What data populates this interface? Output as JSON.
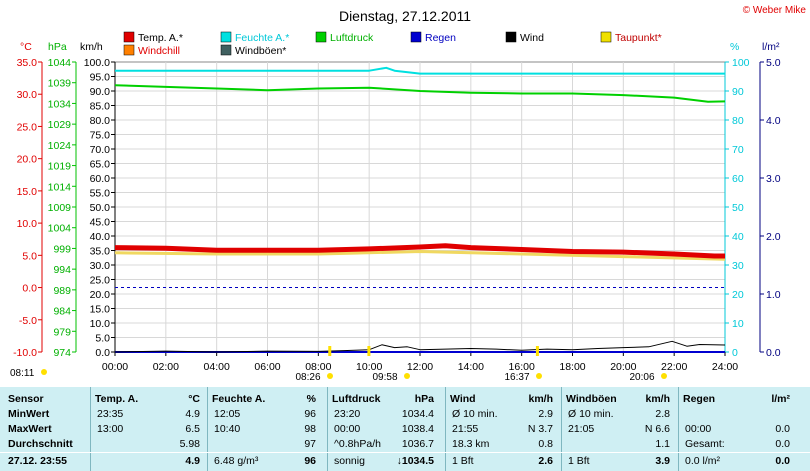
{
  "title": "Dienstag, 27.12.2011",
  "copyright": "© Weber Mike",
  "legend": [
    {
      "label": "Temp. A.*",
      "color": "#e00000"
    },
    {
      "label": "Feuchte A.*",
      "color": "#00e0e0"
    },
    {
      "label": "Luftdruck",
      "color": "#00d000"
    },
    {
      "label": "Regen",
      "color": "#0000d0"
    },
    {
      "label": "Wind",
      "color": "#000000"
    },
    {
      "label": "Taupunkt*",
      "color": "#f0e000"
    },
    {
      "label": "Windchill",
      "color": "#ff8000"
    },
    {
      "label": "Windböen*",
      "color": "#406060"
    }
  ],
  "colors": {
    "temp": "#e00000",
    "humidity": "#00e0e0",
    "pressure": "#00d000",
    "rain": "#0000d0",
    "wind": "#000000",
    "dew": "#f0d860",
    "table_bg": "#cfeff3"
  },
  "axes": {
    "temp_unit": "°C",
    "hpa_unit": "hPa",
    "kmh_unit": "km/h",
    "pct_unit": "%",
    "rain_unit": "l/m²",
    "temp_ticks": [
      "35.0",
      "30.0",
      "25.0",
      "20.0",
      "15.0",
      "10.0",
      "5.0",
      "0.0",
      "-5.0",
      "-10.0"
    ],
    "hpa_ticks": [
      "1044",
      "1039",
      "1034",
      "1029",
      "1024",
      "1019",
      "1014",
      "1009",
      "1004",
      "999",
      "994",
      "989",
      "984",
      "979",
      "974"
    ],
    "kmh_ticks": [
      "100.0",
      "95.0",
      "90.0",
      "85.0",
      "80.0",
      "75.0",
      "70.0",
      "65.0",
      "60.0",
      "55.0",
      "50.0",
      "45.0",
      "40.0",
      "35.0",
      "30.0",
      "25.0",
      "20.0",
      "15.0",
      "10.0",
      "5.0",
      "0.0"
    ],
    "pct_ticks": [
      "100",
      "90",
      "80",
      "70",
      "60",
      "50",
      "40",
      "30",
      "20",
      "10",
      "0"
    ],
    "rain_ticks": [
      "5.0",
      "4.0",
      "3.0",
      "2.0",
      "1.0",
      "0.0"
    ],
    "time_ticks": [
      "00:00",
      "02:00",
      "04:00",
      "06:00",
      "08:00",
      "10:00",
      "12:00",
      "14:00",
      "16:00",
      "18:00",
      "20:00",
      "22:00",
      "24:00"
    ]
  },
  "sun_markers": [
    "08:11",
    "08:26",
    "09:58",
    "16:37",
    "20:06"
  ],
  "chart_data": {
    "type": "line",
    "x_unit": "hours",
    "xlim": [
      0,
      24
    ],
    "series": [
      {
        "name": "Temp. A.*",
        "axis": "°C",
        "x": [
          0,
          2,
          4,
          6,
          8,
          10,
          12,
          13,
          14,
          16,
          18,
          20,
          22,
          23.58,
          24
        ],
        "values": [
          6.2,
          6.1,
          5.8,
          5.8,
          5.8,
          6.0,
          6.3,
          6.5,
          6.2,
          5.9,
          5.6,
          5.5,
          5.2,
          4.9,
          4.9
        ]
      },
      {
        "name": "Feuchte A.*",
        "axis": "%",
        "x": [
          0,
          2,
          4,
          6,
          8,
          10,
          10.67,
          11,
          12,
          14,
          16,
          18,
          20,
          22,
          24
        ],
        "values": [
          97,
          97,
          97,
          97,
          97,
          97,
          98,
          97,
          96,
          96,
          96,
          96,
          96,
          96,
          96
        ]
      },
      {
        "name": "Luftdruck",
        "axis": "hPa",
        "x": [
          0,
          2,
          4,
          6,
          8,
          10,
          12,
          14,
          16,
          18,
          20,
          22,
          23.33,
          24
        ],
        "values": [
          1038.4,
          1038.0,
          1037.6,
          1037.2,
          1037.6,
          1037.8,
          1037.0,
          1036.6,
          1036.4,
          1036.4,
          1036.0,
          1035.4,
          1034.4,
          1034.5
        ]
      },
      {
        "name": "Taupunkt*",
        "axis": "°C",
        "x": [
          0,
          4,
          8,
          12,
          16,
          20,
          24
        ],
        "values": [
          5.4,
          5.2,
          5.2,
          5.6,
          5.2,
          4.8,
          4.4
        ]
      },
      {
        "name": "Wind",
        "axis": "km/h",
        "x": [
          0,
          2,
          4,
          6,
          8,
          9,
          10,
          10.5,
          11,
          11.5,
          12,
          13,
          14,
          15,
          16,
          17,
          18,
          19,
          20,
          21,
          21.92,
          22.5,
          23,
          24
        ],
        "values": [
          0,
          0.3,
          0,
          0.3,
          0.2,
          0.5,
          0.8,
          2.5,
          1.5,
          1.8,
          0.8,
          1.0,
          1.2,
          1.0,
          0.6,
          1.0,
          0.8,
          1.2,
          1.5,
          1.8,
          3.7,
          2.0,
          2.6,
          2.4
        ]
      },
      {
        "name": "Regen",
        "axis": "l/m²",
        "x": [
          0,
          24
        ],
        "values": [
          0,
          0
        ]
      }
    ],
    "reference_lines": [
      {
        "axis": "°C",
        "value": 0
      }
    ]
  },
  "table": {
    "headers": [
      "Sensor",
      "Temp. A.",
      "°C",
      "Feuchte A.",
      "%",
      "Luftdruck",
      "hPa",
      "Wind",
      "km/h",
      "Windböen",
      "km/h",
      "Regen",
      "l/m²"
    ],
    "rows": [
      {
        "label": "MinWert",
        "cells": [
          "23:35",
          "4.9",
          "12:05",
          "96",
          "23:20",
          "1034.4",
          "Ø 10 min.",
          "2.9",
          "Ø 10 min.",
          "2.8",
          "",
          ""
        ]
      },
      {
        "label": "MaxWert",
        "cells": [
          "13:00",
          "6.5",
          "10:40",
          "98",
          "00:00",
          "1038.4",
          "21:55",
          "N 3.7",
          "21:05",
          "N 6.6",
          "00:00",
          "0.0"
        ]
      },
      {
        "label": "Durchschnitt",
        "cells": [
          "",
          "5.98",
          "",
          "97",
          "^0.8hPa/h",
          "1036.7",
          "18.3 km",
          "0.8",
          "",
          "1.1",
          "Gesamt:",
          "0.0"
        ]
      },
      {
        "label": "27.12. 23:55",
        "cells": [
          "",
          "4.9",
          "6.48 g/m³",
          "96",
          "sonnig",
          "↓1034.5",
          "1 Bft",
          "2.6",
          "1 Bft",
          "3.9",
          "0.0 l/m²",
          "0.0"
        ]
      }
    ]
  }
}
